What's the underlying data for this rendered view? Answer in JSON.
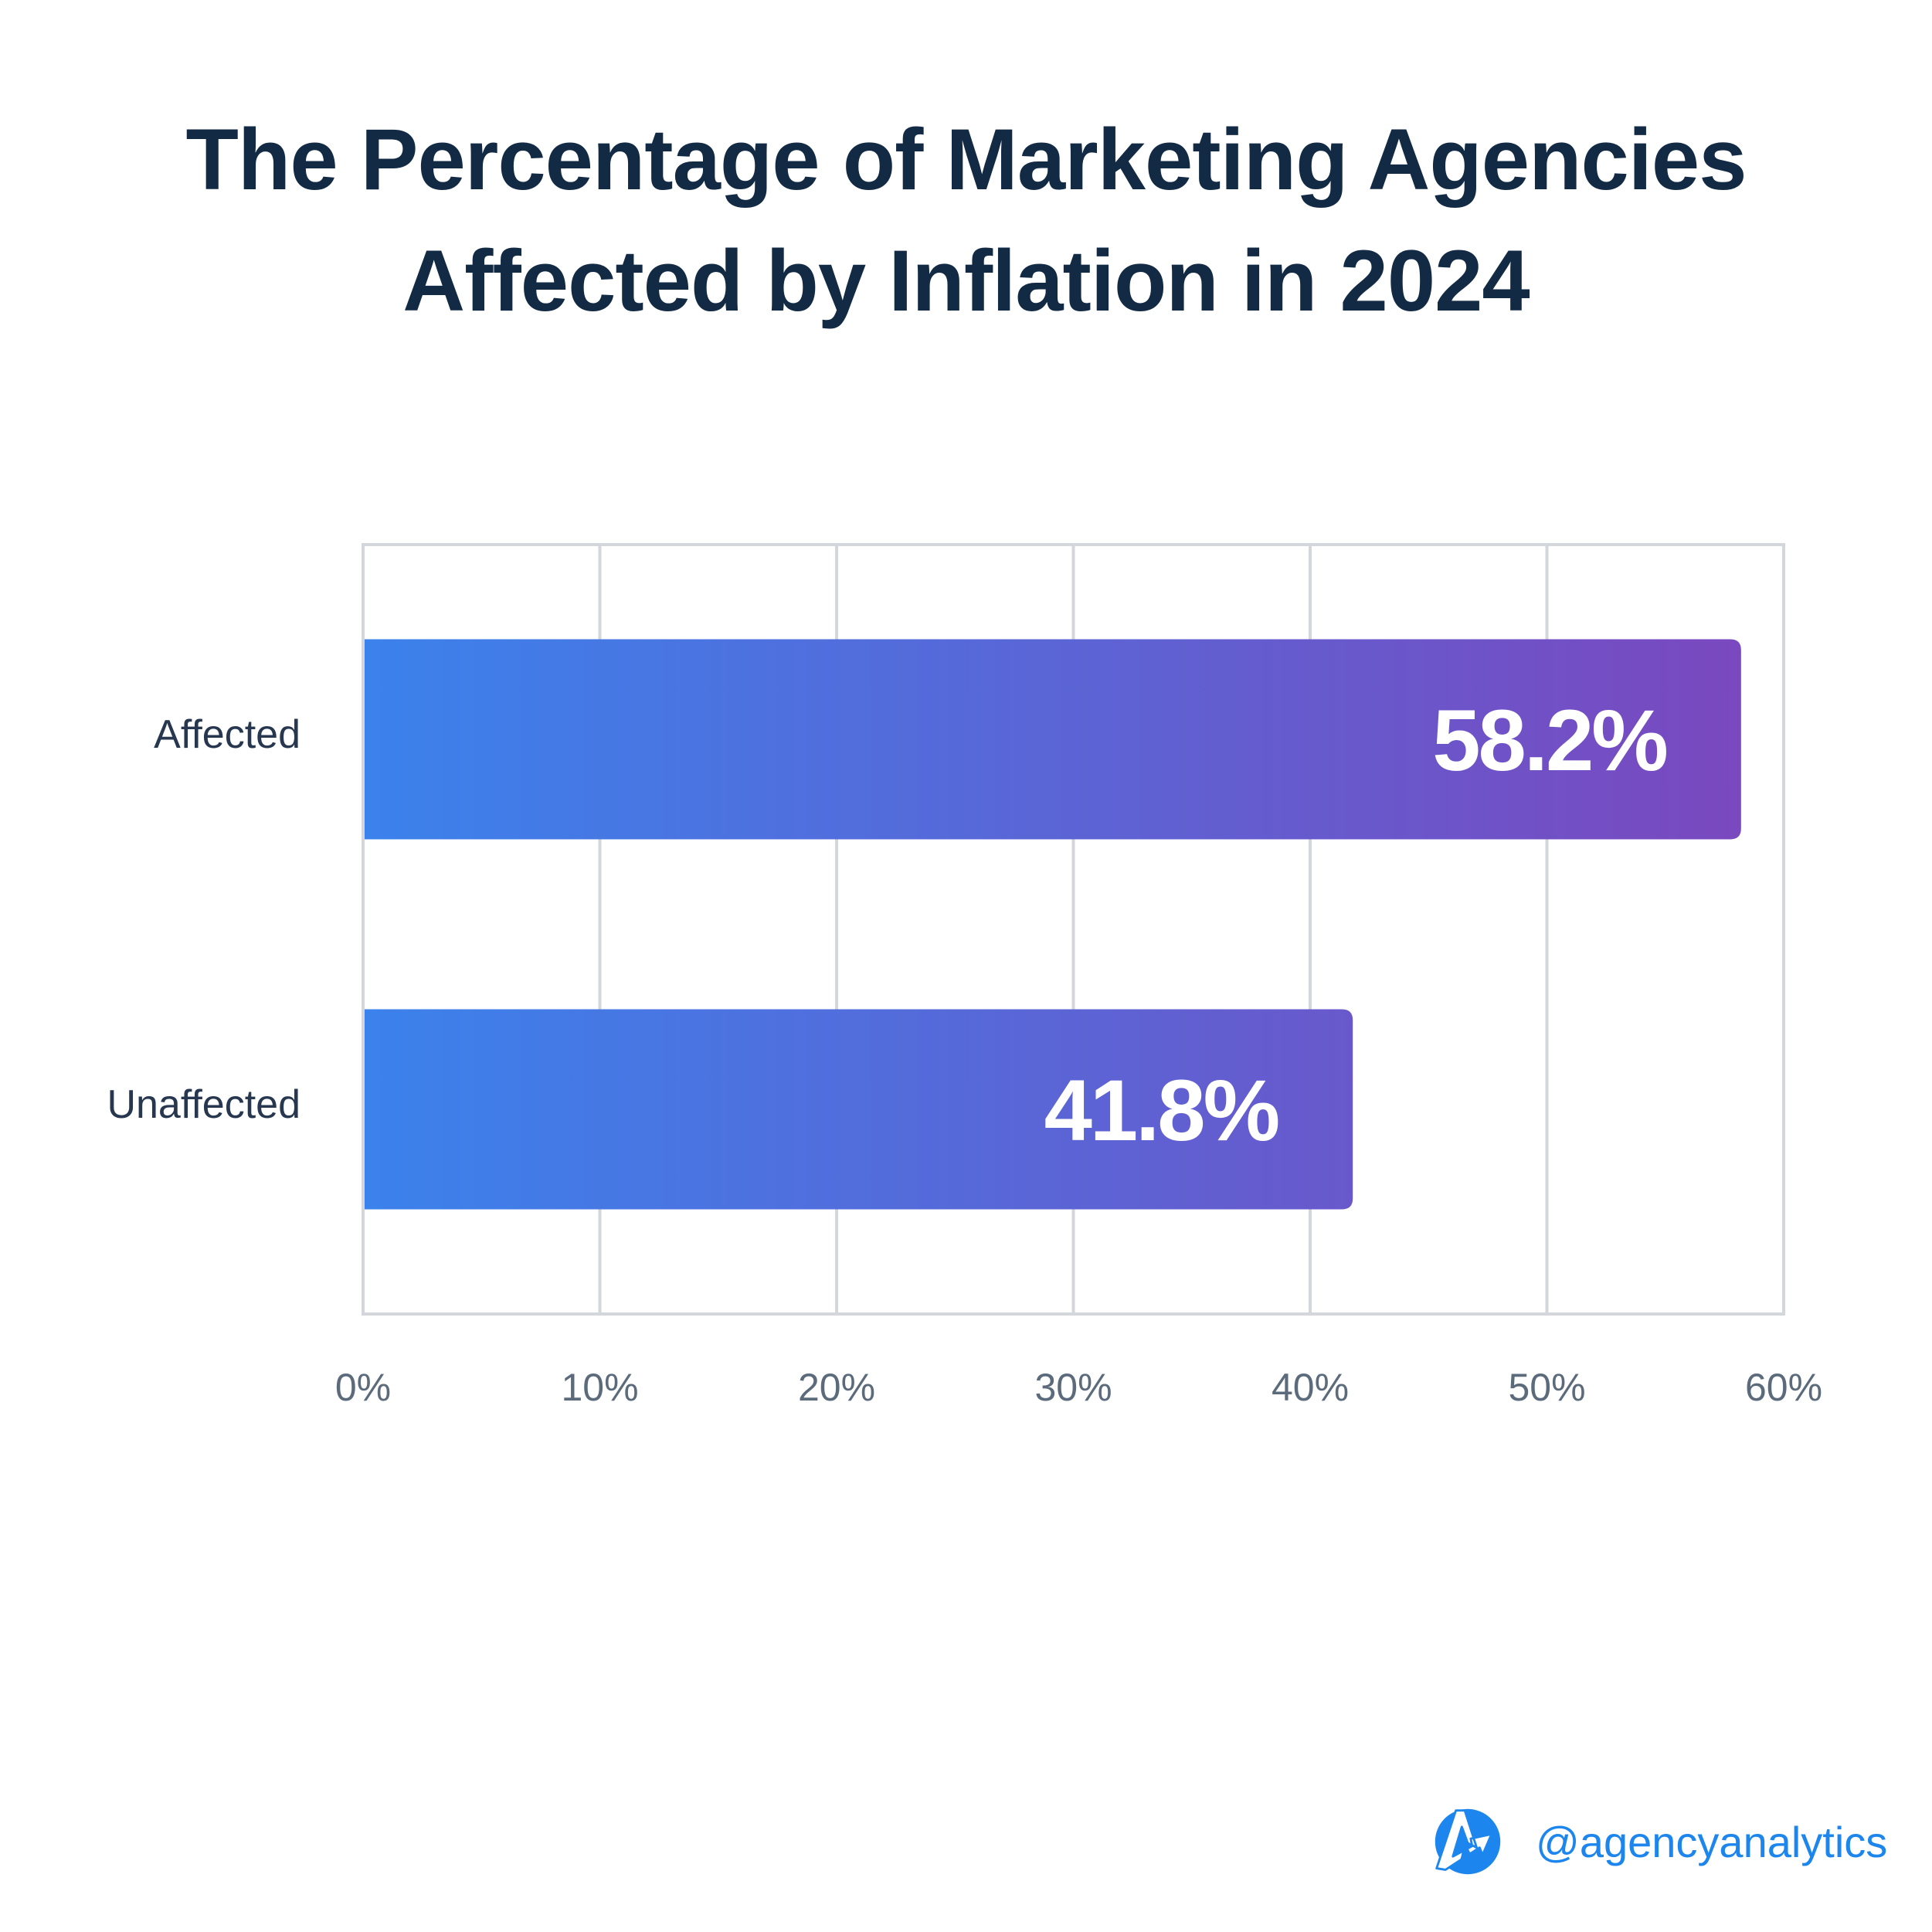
{
  "title": {
    "line1": "The Percentage of Marketing Agencies",
    "line2": "Affected by Inflation in 2024"
  },
  "colors": {
    "title": "#122a44",
    "category_label": "#26374f",
    "tick_label": "#5b6b7c",
    "grid": "#d3d6db",
    "bar_gradient_start": "#3b82ec",
    "bar_gradient_end": "#7a48bf",
    "brand": "#1c86ee"
  },
  "chart_data": {
    "type": "bar",
    "orientation": "horizontal",
    "title": "The Percentage of Marketing Agencies Affected by Inflation in 2024",
    "categories": [
      "Affected",
      "Unaffected"
    ],
    "values": [
      58.2,
      41.8
    ],
    "value_labels": [
      "58.2%",
      "41.8%"
    ],
    "xlabel": "",
    "ylabel": "",
    "xlim": [
      0,
      60
    ],
    "x_ticks": [
      0,
      10,
      20,
      30,
      40,
      50,
      60
    ],
    "x_tick_labels": [
      "0%",
      "10%",
      "20%",
      "30%",
      "40%",
      "50%",
      "60%"
    ],
    "grid": true,
    "legend": "none"
  },
  "brand": {
    "icon": "agencyanalytics-logo-icon",
    "handle": "@agencyanalytics"
  }
}
